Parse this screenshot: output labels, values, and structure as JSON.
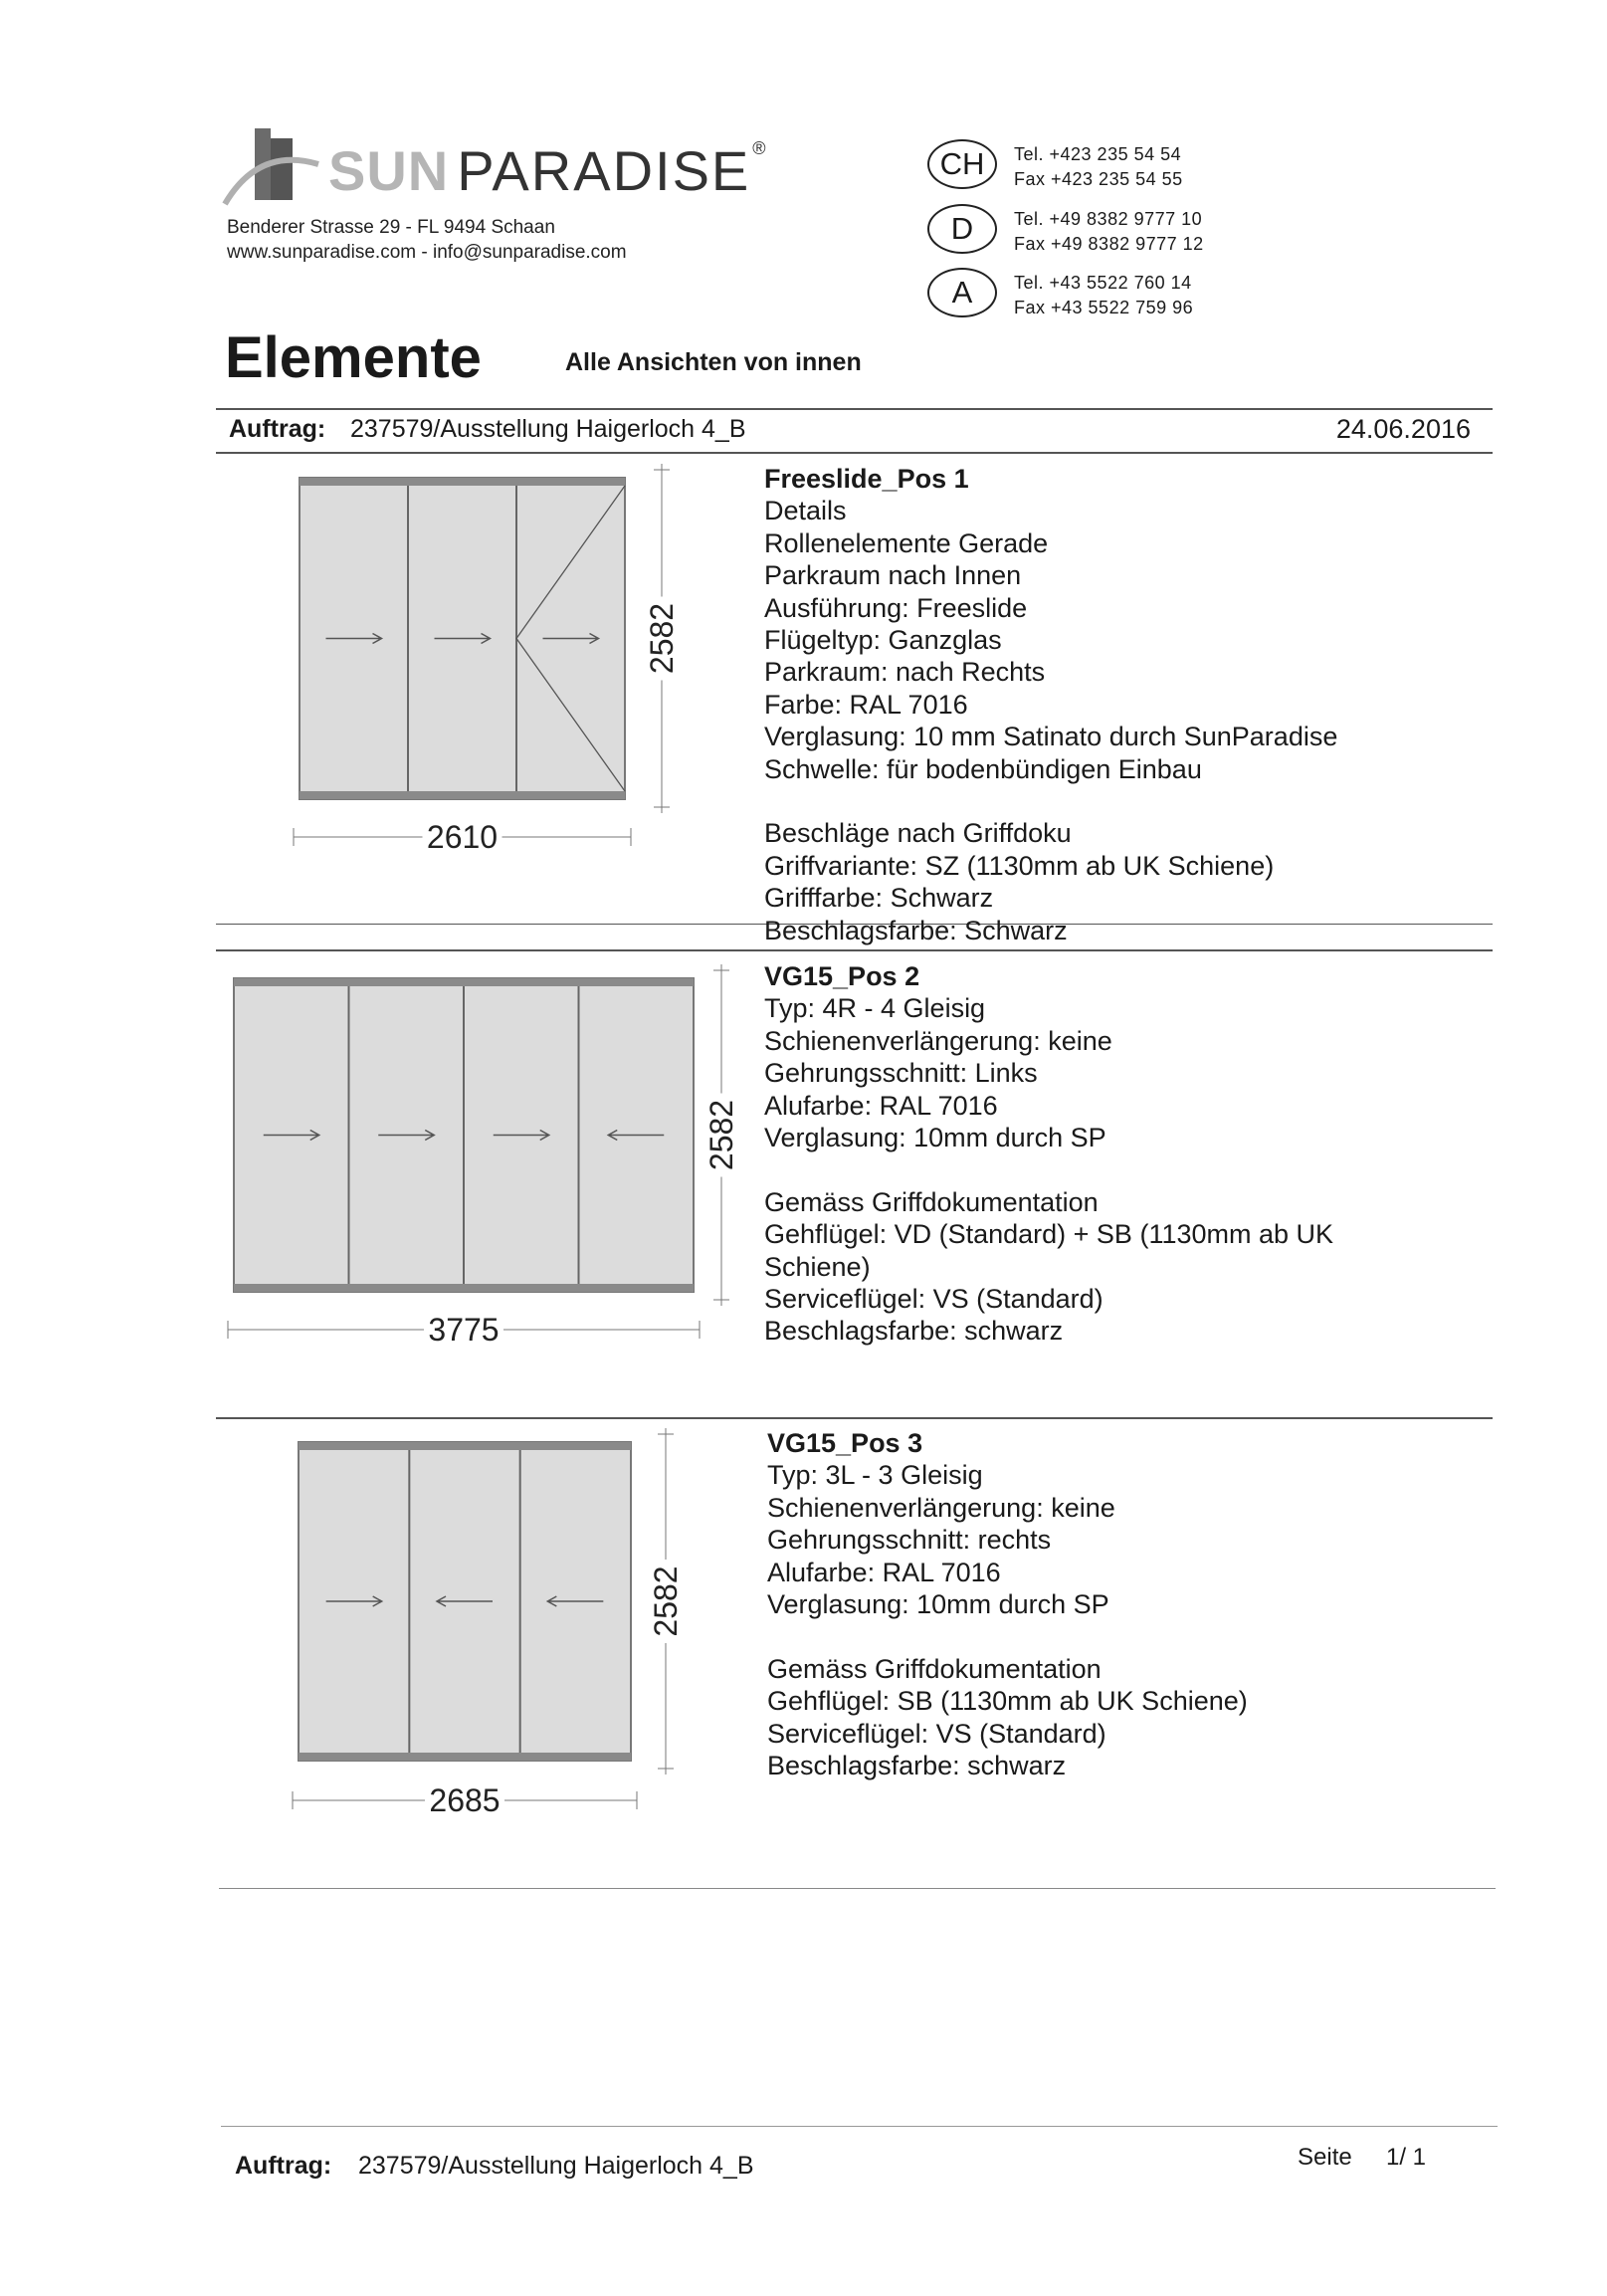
{
  "header": {
    "logo": {
      "sun": "SUN",
      "paradise": "PARADISE",
      "registered": "®"
    },
    "address": "Benderer Strasse 29  -  FL  9494 Schaan",
    "web": "www.sunparadise.com - info@sunparadise.com",
    "contacts": [
      {
        "country": "CH",
        "tel": "Tel. +423 235 54 54",
        "fax": "Fax +423 235 54 55"
      },
      {
        "country": "D",
        "tel": "Tel. +49 8382 9777 10",
        "fax": "Fax +49 8382 9777 12"
      },
      {
        "country": "A",
        "tel": "Tel. +43 5522 760 14",
        "fax": "Fax +43 5522 759 96"
      }
    ],
    "title": "Elemente",
    "subtitle": "Alle Ansichten von innen"
  },
  "order": {
    "label": "Auftrag:",
    "value": "237579/Ausstellung Haigerloch 4_B",
    "date": "24.06.2016"
  },
  "positions": [
    {
      "title": "Freeslide_Pos 1",
      "lines": [
        "Details",
        "Rollenelemente Gerade",
        "Parkraum nach Innen",
        "Ausführung: Freeslide",
        "Flügeltyp: Ganzglas",
        "Parkraum: nach Rechts",
        "Farbe: RAL 7016",
        "Verglasung: 10 mm Satinato durch SunParadise",
        "Schwelle: für bodenbündigen Einbau",
        "",
        "Beschläge nach Griffdoku",
        "Griffvariante: SZ (1130mm ab UK Schiene)",
        "Grifffarbe: Schwarz",
        "Beschlagsfarbe: Schwarz"
      ],
      "width": "2610",
      "height": "2582",
      "arrows": [
        "right",
        "right",
        "right"
      ],
      "swing_last_panel": true
    },
    {
      "title": "VG15_Pos 2",
      "lines": [
        "Typ: 4R - 4 Gleisig",
        "Schienenverlängerung: keine",
        "Gehrungsschnitt: Links",
        "Alufarbe: RAL 7016",
        "Verglasung: 10mm durch SP",
        "",
        "Gemäss Griffdokumentation",
        "Gehflügel: VD (Standard) + SB (1130mm ab UK",
        "Schiene)",
        "Serviceflügel: VS (Standard)",
        "Beschlagsfarbe: schwarz"
      ],
      "width": "3775",
      "height": "2582",
      "arrows": [
        "right",
        "right",
        "right",
        "left"
      ],
      "swing_last_panel": false
    },
    {
      "title": "VG15_Pos 3",
      "lines": [
        "Typ: 3L - 3 Gleisig",
        "Schienenverlängerung: keine",
        "Gehrungsschnitt: rechts",
        "Alufarbe: RAL 7016",
        "Verglasung: 10mm durch SP",
        "",
        "Gemäss Griffdokumentation",
        "Gehflügel: SB (1130mm ab UK Schiene)",
        "Serviceflügel: VS (Standard)",
        "Beschlagsfarbe: schwarz"
      ],
      "width": "2685",
      "height": "2582",
      "arrows": [
        "right",
        "left",
        "left"
      ],
      "swing_last_panel": false
    }
  ],
  "footer": {
    "label": "Auftrag:",
    "value": "237579/Ausstellung Haigerloch 4_B",
    "page_label": "Seite",
    "page": "1/ 1"
  },
  "colors": {
    "frame": "#8a8a8a",
    "glass": "#dcdcdc",
    "text": "#1a1a1a"
  }
}
